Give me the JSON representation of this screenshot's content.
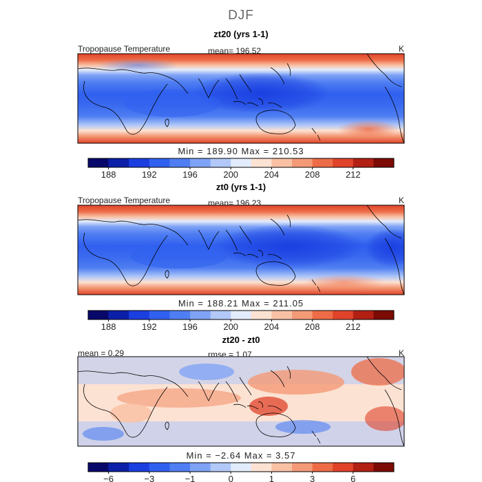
{
  "figure": {
    "title": "DJF"
  },
  "panels": [
    {
      "id": "p1",
      "title": "zt20 (yrs 1-1)",
      "left_label": "Tropopause Temperature",
      "stat_label": "mean= 196.52",
      "unit": "K",
      "min_max": "Min = 189.90 Max = 210.53"
    },
    {
      "id": "p2",
      "title": "zt0 (yrs 1-1)",
      "left_label": "Tropopause Temperature",
      "stat_label": "mean= 196.23",
      "unit": "K",
      "min_max": "Min = 188.21 Max = 211.05"
    },
    {
      "id": "p3",
      "title": "zt20 - zt0",
      "left_label": "mean = 0.29",
      "stat_label": "rmse = 1.07",
      "unit": "K",
      "min_max": "Min = −2.64 Max = 3.57"
    }
  ],
  "chart_data": [
    {
      "type": "heatmap",
      "title": "zt20 (yrs 1-1)",
      "variable": "Tropopause Temperature",
      "units": "K",
      "mean": 196.52,
      "min": 189.9,
      "max": 210.53,
      "colorbar": {
        "boundaries": [
          186,
          188,
          190,
          192,
          194,
          196,
          198,
          200,
          202,
          204,
          206,
          208,
          210,
          212,
          214
        ],
        "tick_labels": [
          "188",
          "192",
          "196",
          "200",
          "204",
          "208",
          "212"
        ],
        "tick_values": [
          188,
          192,
          196,
          200,
          204,
          208,
          212
        ]
      }
    },
    {
      "type": "heatmap",
      "title": "zt0 (yrs 1-1)",
      "variable": "Tropopause Temperature",
      "units": "K",
      "mean": 196.23,
      "min": 188.21,
      "max": 211.05,
      "colorbar": {
        "boundaries": [
          186,
          188,
          190,
          192,
          194,
          196,
          198,
          200,
          202,
          204,
          206,
          208,
          210,
          212,
          214
        ],
        "tick_labels": [
          "188",
          "192",
          "196",
          "200",
          "204",
          "208",
          "212"
        ],
        "tick_values": [
          188,
          192,
          196,
          200,
          204,
          208,
          212
        ]
      }
    },
    {
      "type": "heatmap",
      "title": "zt20 - zt0",
      "units": "K",
      "mean": 0.29,
      "rmse": 1.07,
      "min": -2.64,
      "max": 3.57,
      "colorbar": {
        "boundaries": [
          -8,
          -6,
          -4,
          -3,
          -2,
          -1,
          -0.5,
          0,
          0.5,
          1,
          2,
          3,
          4,
          6,
          8
        ],
        "tick_labels": [
          "−6",
          "−3",
          "−1",
          "0",
          "1",
          "3",
          "6"
        ],
        "tick_values": [
          -6,
          -3,
          -1,
          0,
          1,
          3,
          6
        ]
      }
    }
  ],
  "colors": {
    "palette": [
      "#08086b",
      "#0b1fa8",
      "#1a3ee0",
      "#3060ef",
      "#4f7ef2",
      "#7ea2f5",
      "#b1c8f8",
      "#e3ecfb",
      "#fce2d2",
      "#f9c1a4",
      "#f49a77",
      "#ed6c47",
      "#e0432a",
      "#b21f13",
      "#7c0a05"
    ],
    "land": "#000000"
  }
}
